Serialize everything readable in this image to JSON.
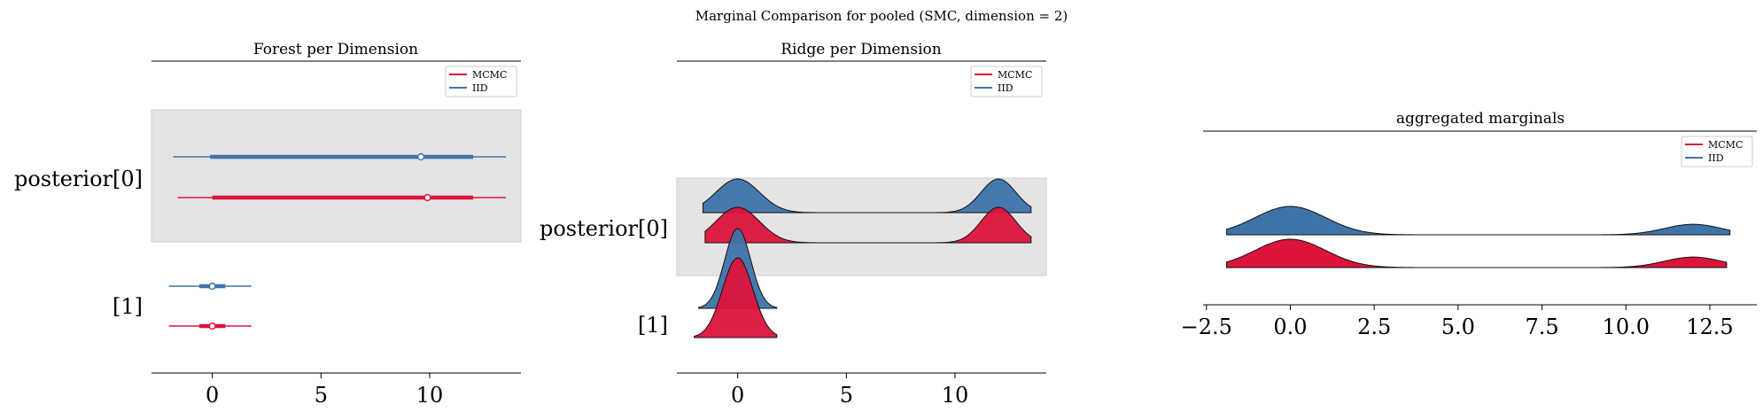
{
  "suptitle": "Marginal Comparison for pooled (SMC, dimension = 2)",
  "colors": {
    "MCMC": "#dc143c",
    "IID": "#3d73a8",
    "band": "#e4e4e4",
    "axis": "#000000"
  },
  "legend": {
    "entries": [
      "MCMC",
      "IID"
    ],
    "placement": "upper right"
  },
  "chart_data": [
    {
      "type": "forest",
      "title": "Forest per Dimension",
      "row_labels": [
        "posterior[0]",
        "[1]"
      ],
      "xticks": [
        0,
        5,
        10
      ],
      "xlim": [
        -2.8,
        14.2
      ],
      "series": [
        {
          "name": "MCMC",
          "rows": [
            {
              "label": "posterior[0]",
              "hdi_low": -1.6,
              "hdi_high": 13.5,
              "iqr_low": 0.0,
              "iqr_high": 12.0,
              "median": 9.9
            },
            {
              "label": "[1]",
              "hdi_low": -2.0,
              "hdi_high": 1.8,
              "iqr_low": -0.6,
              "iqr_high": 0.6,
              "median": 0.0
            }
          ]
        },
        {
          "name": "IID",
          "rows": [
            {
              "label": "posterior[0]",
              "hdi_low": -1.8,
              "hdi_high": 13.5,
              "iqr_low": -0.1,
              "iqr_high": 12.0,
              "median": 9.6
            },
            {
              "label": "[1]",
              "hdi_low": -2.0,
              "hdi_high": 1.8,
              "iqr_low": -0.6,
              "iqr_high": 0.6,
              "median": 0.0
            }
          ]
        }
      ]
    },
    {
      "type": "ridge",
      "title": "Ridge per Dimension",
      "row_labels": [
        "posterior[0]",
        "[1]"
      ],
      "xticks": [
        0,
        5,
        10
      ],
      "xlim": [
        -2.8,
        14.2
      ],
      "series": [
        {
          "name": "MCMC",
          "rows": [
            {
              "label": "posterior[0]",
              "x_range": [
                -1.5,
                13.5
              ],
              "modes": [
                {
                  "mu": 0,
                  "sigma": 1.0,
                  "w": 1
                },
                {
                  "mu": 12,
                  "sigma": 0.8,
                  "w": 1
                }
              ]
            },
            {
              "label": "[1]",
              "x_range": [
                -2.0,
                1.8
              ],
              "modes": [
                {
                  "mu": 0,
                  "sigma": 0.7,
                  "w": 1
                }
              ]
            }
          ]
        },
        {
          "name": "IID",
          "rows": [
            {
              "label": "posterior[0]",
              "x_range": [
                -1.6,
                13.5
              ],
              "modes": [
                {
                  "mu": 0,
                  "sigma": 1.0,
                  "w": 1
                },
                {
                  "mu": 12,
                  "sigma": 0.8,
                  "w": 1
                }
              ]
            },
            {
              "label": "[1]",
              "x_range": [
                -1.8,
                1.8
              ],
              "modes": [
                {
                  "mu": 0,
                  "sigma": 0.6,
                  "w": 1
                }
              ]
            }
          ]
        }
      ]
    },
    {
      "type": "area",
      "title": "aggregated marginals",
      "xticks": [
        -2.5,
        0.0,
        2.5,
        5.0,
        7.5,
        10.0,
        12.5
      ],
      "xtick_labels": [
        "−2.5",
        "0.0",
        "2.5",
        "5.0",
        "7.5",
        "10.0",
        "12.5"
      ],
      "xlim": [
        -2.6,
        13.9
      ],
      "series": [
        {
          "name": "MCMC",
          "x_range": [
            -1.9,
            13.0
          ],
          "modes": [
            {
              "mu": 0,
              "sigma": 1.05,
              "w": 1
            },
            {
              "mu": 12,
              "sigma": 0.85,
              "w": 0.37
            }
          ]
        },
        {
          "name": "IID",
          "x_range": [
            -1.9,
            13.1
          ],
          "modes": [
            {
              "mu": 0,
              "sigma": 1.05,
              "w": 1
            },
            {
              "mu": 12,
              "sigma": 0.85,
              "w": 0.37
            }
          ]
        }
      ]
    }
  ]
}
